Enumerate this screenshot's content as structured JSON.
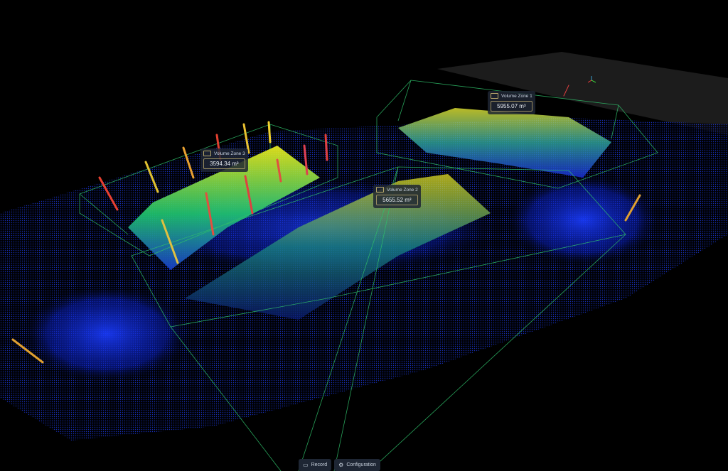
{
  "zones": [
    {
      "label": "Volume Zone 3",
      "value": "3594.34 m³"
    },
    {
      "label": "Volume Zone 2",
      "value": "5655.52 m³"
    },
    {
      "label": "Volume Zone 1",
      "value": "5955.07 m³"
    }
  ],
  "toolbar": {
    "record_label": "Record",
    "configuration_label": "Configuration"
  },
  "colors": {
    "background": "#000000",
    "wireframe": "#2fbf6a",
    "cloud_low": "#1030ff",
    "cloud_mid": "#20d060",
    "cloud_high": "#f0f020",
    "label_bg": "#1e2634"
  }
}
